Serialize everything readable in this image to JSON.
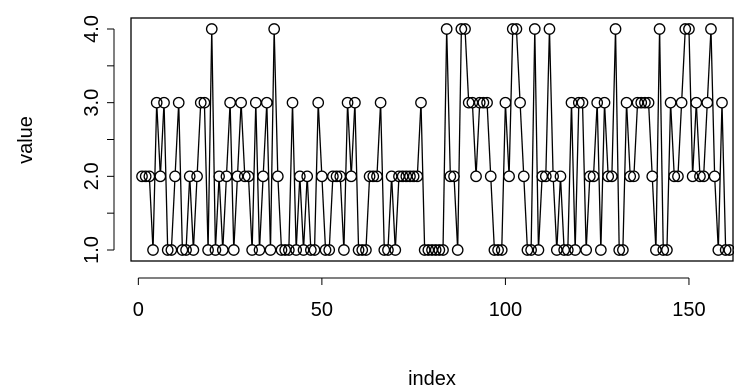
{
  "chart_data": {
    "type": "line",
    "xlabel": "index",
    "ylabel": "value",
    "xlim": [
      -2,
      162
    ],
    "ylim": [
      1,
      4
    ],
    "x_ticks": [
      0,
      50,
      100,
      150
    ],
    "x_tick_labels": [
      "0",
      "50",
      "100",
      "150"
    ],
    "y_ticks": [
      1,
      2,
      3,
      4
    ],
    "y_tick_labels": [
      "1.0",
      "2.0",
      "3.0",
      "4.0"
    ],
    "y_minor_ticks": [
      1.5,
      2.5,
      3.5
    ],
    "point_style": "open-circle-with-line",
    "series": [
      {
        "x": [
          1,
          2,
          3,
          4,
          5,
          6,
          7,
          8,
          9,
          10,
          11,
          12,
          13,
          14,
          15,
          16,
          17,
          18,
          19,
          20,
          21,
          22,
          23,
          24,
          25,
          26,
          27,
          28,
          29,
          30,
          31,
          32,
          33,
          34,
          35,
          36,
          37,
          38,
          39,
          40,
          41,
          42,
          43,
          44,
          45,
          46,
          47,
          48,
          49,
          50,
          51,
          52,
          53,
          54,
          55,
          56,
          57,
          58,
          59,
          60,
          61,
          62,
          63,
          64,
          65,
          66,
          67,
          68,
          69,
          70,
          71,
          72,
          73,
          74,
          75,
          76,
          77,
          78,
          79,
          80,
          81,
          82,
          83,
          84,
          85,
          86,
          87,
          88,
          89,
          90,
          91,
          92,
          93,
          94,
          95,
          96,
          97,
          98,
          99,
          100,
          101,
          102,
          103,
          104,
          105,
          106,
          107,
          108,
          109,
          110,
          111,
          112,
          113,
          114,
          115,
          116,
          117,
          118,
          119,
          120,
          121,
          122,
          123,
          124,
          125,
          126,
          127,
          128,
          129,
          130,
          131,
          132,
          133,
          134,
          135,
          136,
          137,
          138,
          139,
          140,
          141,
          142,
          143,
          144,
          145,
          146,
          147,
          148,
          149,
          150,
          151,
          152,
          153,
          154,
          155,
          156,
          157,
          158,
          159,
          160,
          161
        ],
        "y": [
          2,
          2,
          2,
          1,
          3,
          2,
          3,
          1,
          1,
          2,
          3,
          1,
          1,
          2,
          1,
          2,
          3,
          3,
          1,
          4,
          1,
          2,
          1,
          2,
          3,
          1,
          2,
          3,
          2,
          2,
          1,
          3,
          1,
          2,
          3,
          1,
          4,
          2,
          1,
          1,
          1,
          3,
          1,
          2,
          1,
          2,
          1,
          1,
          3,
          2,
          1,
          1,
          2,
          2,
          2,
          1,
          3,
          2,
          3,
          1,
          1,
          1,
          2,
          2,
          2,
          3,
          1,
          1,
          2,
          1,
          2,
          2,
          2,
          2,
          2,
          2,
          3,
          1,
          1,
          1,
          1,
          1,
          1,
          4,
          2,
          2,
          1,
          4,
          4,
          3,
          3,
          2,
          3,
          3,
          3,
          2,
          1,
          1,
          1,
          3,
          2,
          4,
          4,
          3,
          2,
          1,
          1,
          4,
          1,
          2,
          2,
          4,
          2,
          1,
          2,
          1,
          1,
          3,
          1,
          3,
          3,
          1,
          2,
          2,
          3,
          1,
          3,
          2,
          2,
          4,
          1,
          1,
          3,
          2,
          2,
          3,
          3,
          3,
          3,
          2,
          1,
          4,
          1,
          1,
          3,
          2,
          2,
          3,
          4,
          4,
          2,
          3,
          2,
          2,
          3,
          4,
          2,
          1,
          3,
          1,
          1
        ]
      }
    ]
  }
}
